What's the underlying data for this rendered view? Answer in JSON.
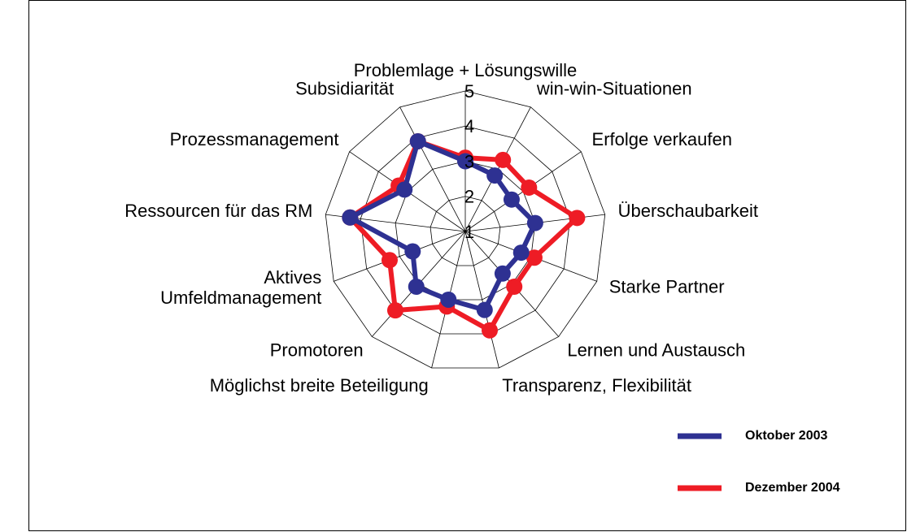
{
  "chart_data": {
    "type": "radar",
    "categories": [
      "Problemlage + Lösungswille",
      "win-win-Situationen",
      "Erfolge verkaufen",
      "Überschaubarkeit",
      "Starke Partner",
      "Lernen und Austausch",
      "Transparenz, Flexibilität",
      "Möglichst breite Beteiligung",
      "Promotoren",
      "Aktives\nUmfeldmanagement",
      "Ressourcen für das RM",
      "Prozessmanagement",
      "Subsidiarität"
    ],
    "series": [
      {
        "name": "Dezember 2004",
        "color": "#ee1c25",
        "values": [
          3.1,
          3.3,
          3.2,
          4.2,
          3.1,
          3.1,
          3.9,
          3.2,
          4.0,
          3.3,
          4.3,
          3.3,
          3.9
        ]
      },
      {
        "name": "Oktober 2003",
        "color": "#2e3192",
        "values": [
          3.0,
          2.8,
          2.6,
          3.0,
          2.7,
          2.6,
          3.3,
          3.0,
          3.1,
          2.6,
          4.3,
          3.1,
          3.9
        ]
      }
    ],
    "rlim": [
      1,
      5
    ],
    "rticks": [
      1,
      2,
      3,
      4,
      5
    ],
    "grid": true,
    "legend": "right"
  }
}
